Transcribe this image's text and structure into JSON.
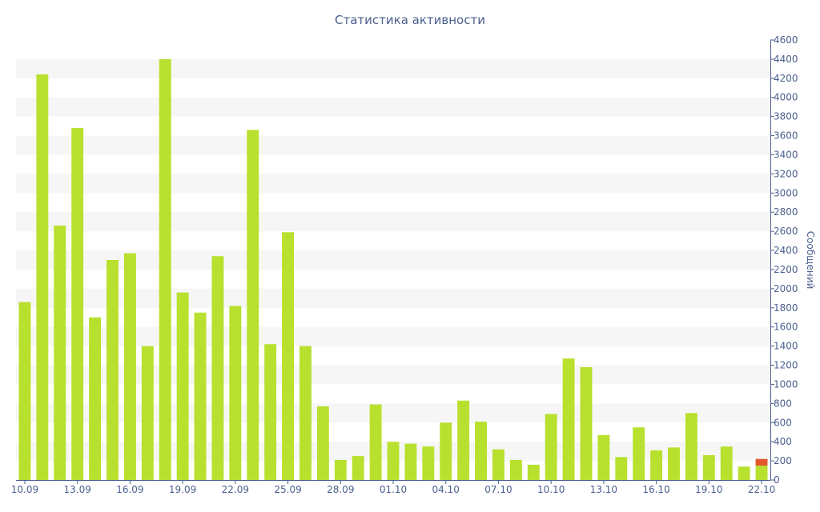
{
  "chart_data": {
    "type": "bar",
    "title": "Статистика активности",
    "ylabel": "Сообщений",
    "xlabel": "",
    "ylim": [
      0,
      4600
    ],
    "y_ticks": [
      0,
      200,
      400,
      600,
      800,
      1000,
      1200,
      1400,
      1600,
      1800,
      2000,
      2200,
      2400,
      2600,
      2800,
      3000,
      3200,
      3400,
      3600,
      3800,
      4000,
      4200,
      4400,
      4600
    ],
    "y_axis_position": "right",
    "grid": "alternating horizontal bands",
    "categories": [
      "10.09",
      "11.09",
      "12.09",
      "13.09",
      "14.09",
      "15.09",
      "16.09",
      "17.09",
      "18.09",
      "19.09",
      "20.09",
      "21.09",
      "22.09",
      "23.09",
      "24.09",
      "25.09",
      "26.09",
      "27.09",
      "28.09",
      "29.09",
      "30.09",
      "01.10",
      "02.10",
      "03.10",
      "04.10",
      "05.10",
      "06.10",
      "07.10",
      "08.10",
      "09.10",
      "10.10",
      "11.10",
      "12.10",
      "13.10",
      "14.10",
      "15.10",
      "16.10",
      "17.10",
      "18.10",
      "19.10",
      "20.10",
      "21.10",
      "22.10"
    ],
    "tick_labels": [
      "10.09",
      "13.09",
      "16.09",
      "19.09",
      "22.09",
      "25.09",
      "28.09",
      "01.10",
      "04.10",
      "07.10",
      "10.10",
      "13.10",
      "16.10",
      "19.10",
      "22.10"
    ],
    "tick_every": 3,
    "series": [
      {
        "color": "#b8e02e",
        "values": [
          1860,
          4240,
          2660,
          3680,
          1700,
          2300,
          2370,
          1400,
          4400,
          1960,
          1750,
          2340,
          1820,
          3660,
          1420,
          2590,
          1400,
          770,
          210,
          250,
          790,
          400,
          380,
          350,
          600,
          830,
          610,
          320,
          210,
          160,
          690,
          1270,
          1180,
          470,
          240,
          550,
          310,
          340,
          700,
          260,
          350,
          140,
          150
        ]
      },
      {
        "color": "#e0582a",
        "values": [
          0,
          0,
          0,
          0,
          0,
          0,
          0,
          0,
          0,
          0,
          0,
          0,
          0,
          0,
          0,
          0,
          0,
          0,
          0,
          0,
          0,
          0,
          0,
          0,
          0,
          0,
          0,
          0,
          0,
          0,
          0,
          0,
          0,
          0,
          0,
          0,
          0,
          0,
          0,
          0,
          0,
          0,
          70
        ]
      }
    ],
    "colors": {
      "band": "#f6f6f6",
      "axis": "#4a5f8e",
      "text": "#4a5f8e"
    }
  }
}
